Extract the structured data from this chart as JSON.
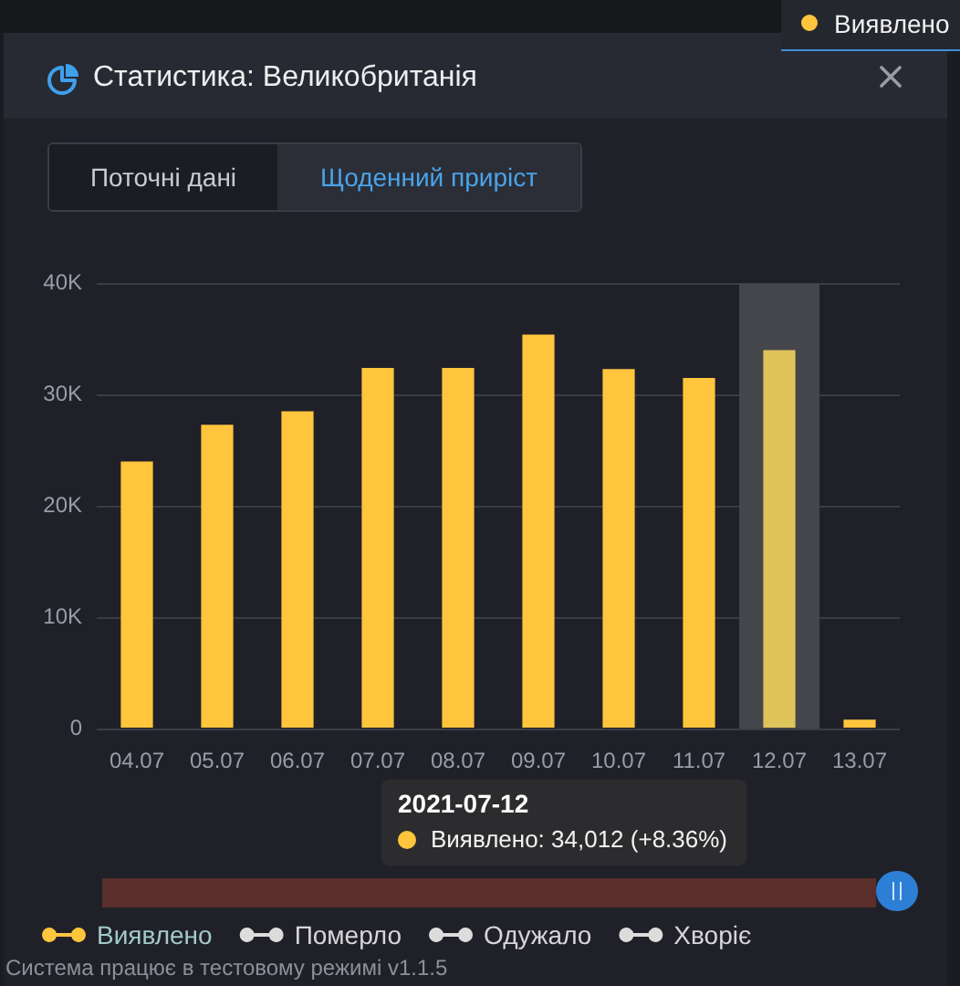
{
  "chart_data": {
    "type": "bar",
    "title": "Статистика: Великобританія",
    "categories": [
      "04.07",
      "05.07",
      "06.07",
      "07.07",
      "08.07",
      "09.07",
      "10.07",
      "11.07",
      "12.07",
      "13.07"
    ],
    "series": [
      {
        "name": "Виявлено",
        "color": "#ffc53d",
        "colors": [
          "#ffc53d",
          "#ffc53d",
          "#ffc53d",
          "#ffc53d",
          "#ffc53d",
          "#ffc53d",
          "#ffc53d",
          "#ffc53d",
          "#dfc35b",
          "#ffc53d"
        ],
        "values": [
          24000,
          27300,
          28500,
          32400,
          32400,
          35400,
          32300,
          31500,
          34012,
          800
        ]
      },
      {
        "name": "Померло",
        "color": "#dcdcdc",
        "values": [
          null,
          null,
          null,
          null,
          null,
          null,
          null,
          null,
          null,
          null
        ]
      },
      {
        "name": "Одужало",
        "color": "#dcdcdc",
        "values": [
          null,
          null,
          null,
          null,
          null,
          null,
          null,
          null,
          null,
          null
        ]
      },
      {
        "name": "Хворіє",
        "color": "#dcdcdc",
        "values": [
          null,
          null,
          null,
          null,
          null,
          null,
          null,
          null,
          null,
          null
        ]
      }
    ],
    "ylim": [
      0,
      40000
    ],
    "yticks": [
      0,
      {
        "value": 10000,
        "label": "10K"
      },
      {
        "value": 20000,
        "label": "20K"
      },
      {
        "value": 30000,
        "label": "30K"
      },
      {
        "value": 40000,
        "label": "40K"
      }
    ],
    "grid": "y",
    "legend": "bottom left",
    "bands": [
      {
        "axis": "x",
        "from": "12.07",
        "to": "12.07",
        "color": "#45464b"
      }
    ],
    "annotations": [
      "2021-07-12",
      "Виявлено: 34,012 (+8.36%)",
      "Поточні дані",
      "Щоденний приріст",
      "Виявлено",
      "Система працює в тестовому режимі v1.1.5"
    ]
  }
}
